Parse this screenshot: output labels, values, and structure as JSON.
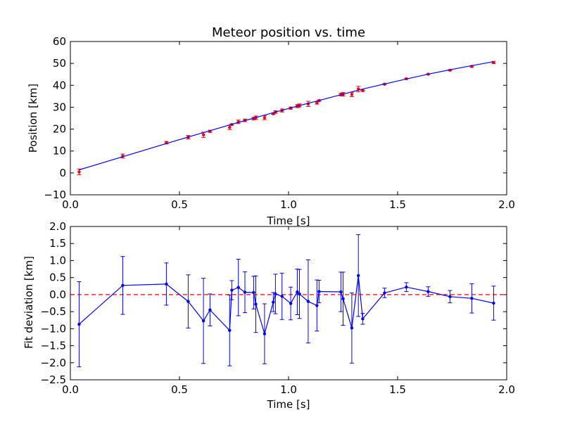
{
  "chart_data": [
    {
      "type": "scatter",
      "title": "Meteor position vs. time",
      "xlabel": "Time [s]",
      "ylabel": "Position [km]",
      "xlim": [
        0.0,
        2.0
      ],
      "ylim": [
        -10,
        60
      ],
      "xticks": [
        "0.0",
        "0.5",
        "1.0",
        "1.5",
        "2.0"
      ],
      "yticks": [
        "−10",
        "0",
        "10",
        "20",
        "30",
        "40",
        "50",
        "60"
      ],
      "grid": false,
      "colors": {
        "points": "#ff0000",
        "fit": "#0000ff",
        "errorbars": "#ff0000"
      },
      "series": [
        {
          "kind": "points-with-errorbars",
          "x": [
            0.04,
            0.24,
            0.44,
            0.54,
            0.61,
            0.64,
            0.73,
            0.74,
            0.77,
            0.8,
            0.84,
            0.85,
            0.89,
            0.93,
            0.94,
            0.97,
            1.01,
            1.04,
            1.05,
            1.09,
            1.13,
            1.14,
            1.24,
            1.25,
            1.29,
            1.32,
            1.34,
            1.44,
            1.54,
            1.64,
            1.74,
            1.84,
            1.94
          ],
          "y": [
            0.5,
            7.7,
            13.8,
            16.3,
            17.4,
            19.0,
            20.8,
            22.1,
            23.3,
            24.0,
            24.8,
            25.2,
            25.2,
            27.0,
            27.8,
            28.5,
            29.6,
            30.5,
            30.8,
            31.5,
            32.0,
            33.0,
            35.8,
            35.9,
            35.8,
            38.3,
            37.6,
            40.5,
            43.0,
            45.1,
            46.9,
            48.6,
            50.4
          ],
          "yerr": [
            1.3,
            0.9,
            0.6,
            0.8,
            1.2,
            0.5,
            1.0,
            0.3,
            0.8,
            0.6,
            0.6,
            0.8,
            0.9,
            0.3,
            0.6,
            0.7,
            0.5,
            0.7,
            0.7,
            1.2,
            0.6,
            0.3,
            0.6,
            0.8,
            1.0,
            1.2,
            0.2,
            0.2,
            0.1,
            0.1,
            0.2,
            0.4,
            0.5
          ]
        },
        {
          "kind": "fit-line",
          "x": [
            0.04,
            0.24,
            0.44,
            0.54,
            0.64,
            0.74,
            0.84,
            0.94,
            1.04,
            1.14,
            1.24,
            1.34,
            1.44,
            1.54,
            1.64,
            1.74,
            1.84,
            1.94
          ],
          "y": [
            1.4,
            7.4,
            13.4,
            16.4,
            19.3,
            22.2,
            25.0,
            27.8,
            30.5,
            33.1,
            35.7,
            38.3,
            40.6,
            42.9,
            45.1,
            47.1,
            49.0,
            50.8
          ]
        }
      ]
    },
    {
      "type": "line",
      "title": "",
      "xlabel": "Time [s]",
      "ylabel": "Fit deviation [km]",
      "xlim": [
        0.0,
        2.0
      ],
      "ylim": [
        -2.5,
        2.0
      ],
      "xticks": [
        "0.0",
        "0.5",
        "1.0",
        "1.5",
        "2.0"
      ],
      "yticks": [
        "−2.5",
        "−2.0",
        "−1.5",
        "−1.0",
        "−0.5",
        "0.0",
        "0.5",
        "1.0",
        "1.5",
        "2.0"
      ],
      "grid": false,
      "colors": {
        "line": "#0000ff",
        "reference": "#ff0000"
      },
      "reference_line": {
        "y": 0.0,
        "style": "dashed"
      },
      "series": [
        {
          "kind": "line-with-errorbars",
          "x": [
            0.04,
            0.24,
            0.44,
            0.54,
            0.61,
            0.64,
            0.73,
            0.74,
            0.77,
            0.8,
            0.84,
            0.85,
            0.89,
            0.93,
            0.94,
            0.97,
            1.01,
            1.04,
            1.05,
            1.09,
            1.13,
            1.14,
            1.24,
            1.25,
            1.29,
            1.32,
            1.34,
            1.44,
            1.54,
            1.64,
            1.74,
            1.84,
            1.94
          ],
          "y": [
            -0.87,
            0.27,
            0.31,
            -0.2,
            -0.77,
            -0.45,
            -1.05,
            0.13,
            0.21,
            0.07,
            0.06,
            -0.28,
            -1.15,
            -0.22,
            0.02,
            -0.05,
            -0.26,
            0.08,
            0.02,
            -0.2,
            -0.32,
            0.09,
            0.08,
            -0.12,
            -0.98,
            0.56,
            -0.71,
            0.05,
            0.22,
            0.09,
            -0.06,
            -0.11,
            -0.25
          ],
          "yerr": [
            1.25,
            0.85,
            0.62,
            0.78,
            1.25,
            0.47,
            1.04,
            0.28,
            0.83,
            0.6,
            0.48,
            0.83,
            0.88,
            0.28,
            0.58,
            0.68,
            0.48,
            0.67,
            0.72,
            1.22,
            0.75,
            0.33,
            0.58,
            0.78,
            1.03,
            1.2,
            0.16,
            0.14,
            0.13,
            0.14,
            0.18,
            0.43,
            0.5
          ]
        }
      ]
    }
  ]
}
